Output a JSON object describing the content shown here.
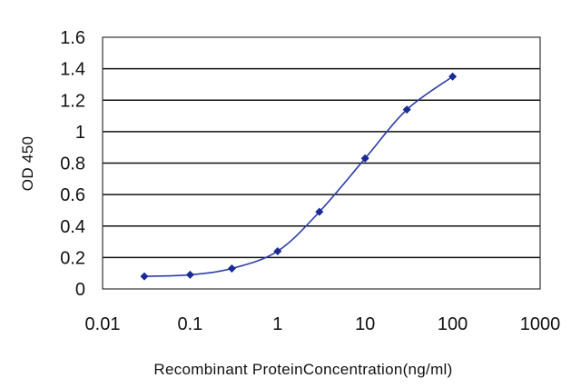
{
  "chart_data": {
    "type": "line",
    "title": "",
    "xlabel": "Recombinant ProteinConcentration(ng/ml)",
    "ylabel": "OD 450",
    "x_scale": "log",
    "xlim": [
      0.01,
      1000
    ],
    "ylim": [
      0,
      1.6
    ],
    "x_tick_labels": [
      "0.01",
      "0.1",
      "1",
      "10",
      "100",
      "1000"
    ],
    "x_ticks": [
      0.01,
      0.1,
      1,
      10,
      100,
      1000
    ],
    "y_tick_labels": [
      "0",
      "0.2",
      "0.4",
      "0.6",
      "0.8",
      "1",
      "1.2",
      "1.4",
      "1.6"
    ],
    "y_ticks": [
      0,
      0.2,
      0.4,
      0.6,
      0.8,
      1,
      1.2,
      1.4,
      1.6
    ],
    "grid": "horizontal",
    "series": [
      {
        "x": [
          0.03,
          0.1,
          0.3,
          1,
          3,
          10,
          30,
          100
        ],
        "y": [
          0.08,
          0.09,
          0.13,
          0.24,
          0.49,
          0.83,
          1.14,
          1.35
        ],
        "color": "#2c3ea8",
        "marker_color": "#1a2a96",
        "marker": "diamond"
      }
    ]
  }
}
